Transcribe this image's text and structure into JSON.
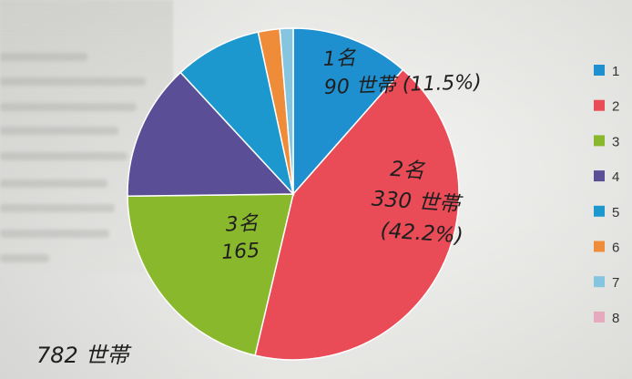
{
  "chart_data": {
    "type": "pie",
    "categories": [
      "1",
      "2",
      "3",
      "4",
      "5",
      "6",
      "7",
      "8"
    ],
    "values": [
      11.5,
      42.2,
      21.1,
      13.3,
      8.5,
      2.1,
      1.3,
      0.0
    ],
    "colors": [
      "#1e8fcf",
      "#e94b57",
      "#8ab82d",
      "#5a4f97",
      "#1c98cf",
      "#ef8c3a",
      "#86c5e0",
      "#e7a9bd"
    ],
    "legend": {
      "placement": "right",
      "labels": [
        "1",
        "2",
        "3",
        "4",
        "5",
        "6",
        "7",
        "8"
      ]
    },
    "annotations": [
      {
        "slice": "1",
        "lines": [
          "1名",
          "90 世帯 (11.5%)"
        ]
      },
      {
        "slice": "2",
        "lines": [
          "2名",
          "330 世帯",
          "(42.2%)"
        ]
      },
      {
        "slice": "3",
        "lines": [
          "3名",
          "165"
        ]
      }
    ],
    "footnote": "782 世帯"
  }
}
